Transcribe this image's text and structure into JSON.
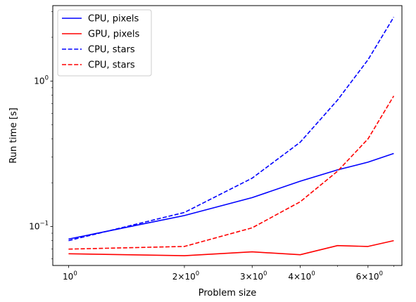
{
  "chart_data": {
    "type": "line",
    "title": "",
    "xlabel": "Problem size",
    "ylabel": "Run time [s]",
    "xscale": "log",
    "yscale": "log",
    "xlim": [
      0.91,
      7.35
    ],
    "ylim": [
      0.054,
      3.3
    ],
    "grid": false,
    "legend_position": "top-left",
    "x": [
      1,
      2,
      3,
      4,
      5,
      6,
      7
    ],
    "x_ticks": [
      {
        "value": 1,
        "label": "10⁰",
        "base": "10",
        "exp": "0"
      },
      {
        "value": 2,
        "label": "2×10⁰",
        "base": "2×10",
        "exp": "0"
      },
      {
        "value": 3,
        "label": "3×10⁰",
        "base": "3×10",
        "exp": "0"
      },
      {
        "value": 4,
        "label": "4×10⁰",
        "base": "4×10",
        "exp": "0"
      },
      {
        "value": 6,
        "label": "6×10⁰",
        "base": "6×10",
        "exp": "0"
      }
    ],
    "y_ticks": [
      {
        "value": 0.1,
        "label": "10⁻¹",
        "base": "10",
        "exp": "−1"
      },
      {
        "value": 1,
        "label": "10⁰",
        "base": "10",
        "exp": "0"
      }
    ],
    "series": [
      {
        "name": "CPU, pixels",
        "color": "#0000ff",
        "dash": "solid",
        "values": [
          0.082,
          0.119,
          0.158,
          0.205,
          0.245,
          0.277,
          0.318
        ]
      },
      {
        "name": "GPU, pixels",
        "color": "#ff0000",
        "dash": "solid",
        "values": [
          0.065,
          0.063,
          0.067,
          0.064,
          0.074,
          0.073,
          0.08
        ]
      },
      {
        "name": "CPU, stars",
        "color": "#0000ff",
        "dash": "dashed",
        "values": [
          0.08,
          0.125,
          0.215,
          0.38,
          0.74,
          1.4,
          2.75
        ]
      },
      {
        "name": "CPU, stars",
        "color": "#ff0000",
        "dash": "dashed",
        "values": [
          0.07,
          0.073,
          0.098,
          0.148,
          0.24,
          0.4,
          0.79
        ]
      }
    ]
  }
}
